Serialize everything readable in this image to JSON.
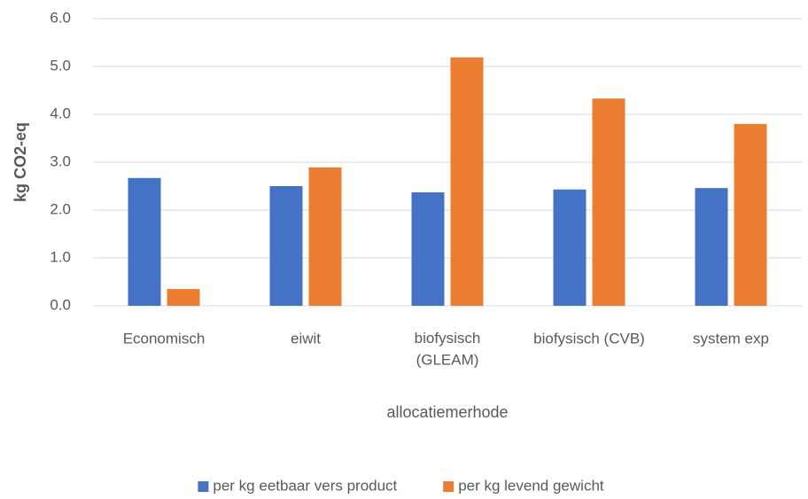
{
  "chart_data": {
    "type": "bar",
    "categories": [
      "Economisch",
      "eiwit",
      "biofysisch\n(GLEAM)",
      "biofysisch (CVB)",
      "system exp"
    ],
    "series": [
      {
        "name": "per kg eetbaar vers product",
        "color": "#4472c4",
        "values": [
          2.67,
          2.5,
          2.37,
          2.43,
          2.46
        ]
      },
      {
        "name": "per kg levend gewicht",
        "color": "#ed7d31",
        "values": [
          0.35,
          2.89,
          5.19,
          4.33,
          3.8
        ]
      }
    ],
    "ylabel": "kg CO2-eq",
    "xlabel": "allocatiemerhode",
    "ylim": [
      0,
      6
    ],
    "yticks": [
      {
        "value": 0,
        "label": "0.0"
      },
      {
        "value": 1,
        "label": "1.0"
      },
      {
        "value": 2,
        "label": "2.0"
      },
      {
        "value": 3,
        "label": "3.0"
      },
      {
        "value": 4,
        "label": "4.0"
      },
      {
        "value": 5,
        "label": "5.0"
      },
      {
        "value": 6,
        "label": "6.0"
      }
    ],
    "grid": true,
    "legend": "bottom"
  }
}
